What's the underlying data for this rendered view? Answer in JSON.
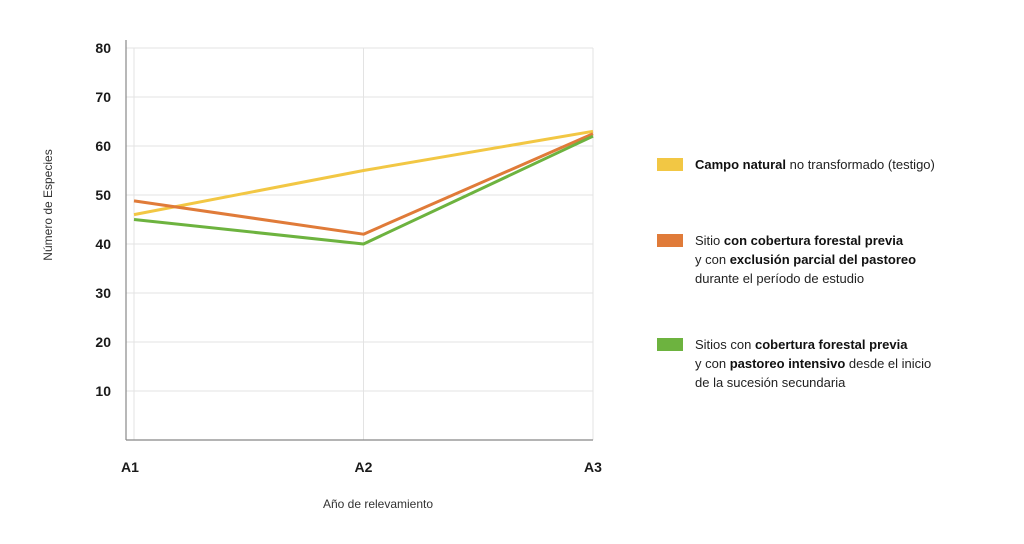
{
  "chart_data": {
    "type": "line",
    "x": [
      "A1",
      "A2",
      "A3"
    ],
    "xlabel": "Año de relevamiento",
    "ylabel": "Número de Especies",
    "ylim": [
      0,
      80
    ],
    "yticks": [
      10,
      20,
      30,
      40,
      50,
      60,
      70,
      80
    ],
    "grid": true,
    "legend_position": "right",
    "series": [
      {
        "color": "#f2c744",
        "values": [
          46,
          55,
          63
        ]
      },
      {
        "color": "#e07b39",
        "values": [
          48.8,
          42,
          62.5
        ]
      },
      {
        "color": "#6db33f",
        "values": [
          45,
          40,
          62
        ]
      }
    ]
  },
  "legend": [
    {
      "color": "#f2c744",
      "lines": [
        [
          {
            "b": "Campo natural"
          },
          {
            "t": " no transformado (testigo)"
          }
        ]
      ]
    },
    {
      "color": "#e07b39",
      "lines": [
        [
          {
            "t": "Sitio "
          },
          {
            "b": "con cobertura forestal previa"
          }
        ],
        [
          {
            "t": " y con "
          },
          {
            "b": "exclusión parcial del pastoreo"
          }
        ],
        [
          {
            "t": "durante el período de estudio"
          }
        ]
      ]
    },
    {
      "color": "#6db33f",
      "lines": [
        [
          {
            "t": "Sitios con "
          },
          {
            "b": "cobertura forestal previa"
          }
        ],
        [
          {
            "t": "y con "
          },
          {
            "b": "pastoreo intensivo"
          },
          {
            "t": " desde el inicio"
          }
        ],
        [
          {
            "t": "de la sucesión secundaria"
          }
        ]
      ]
    }
  ]
}
